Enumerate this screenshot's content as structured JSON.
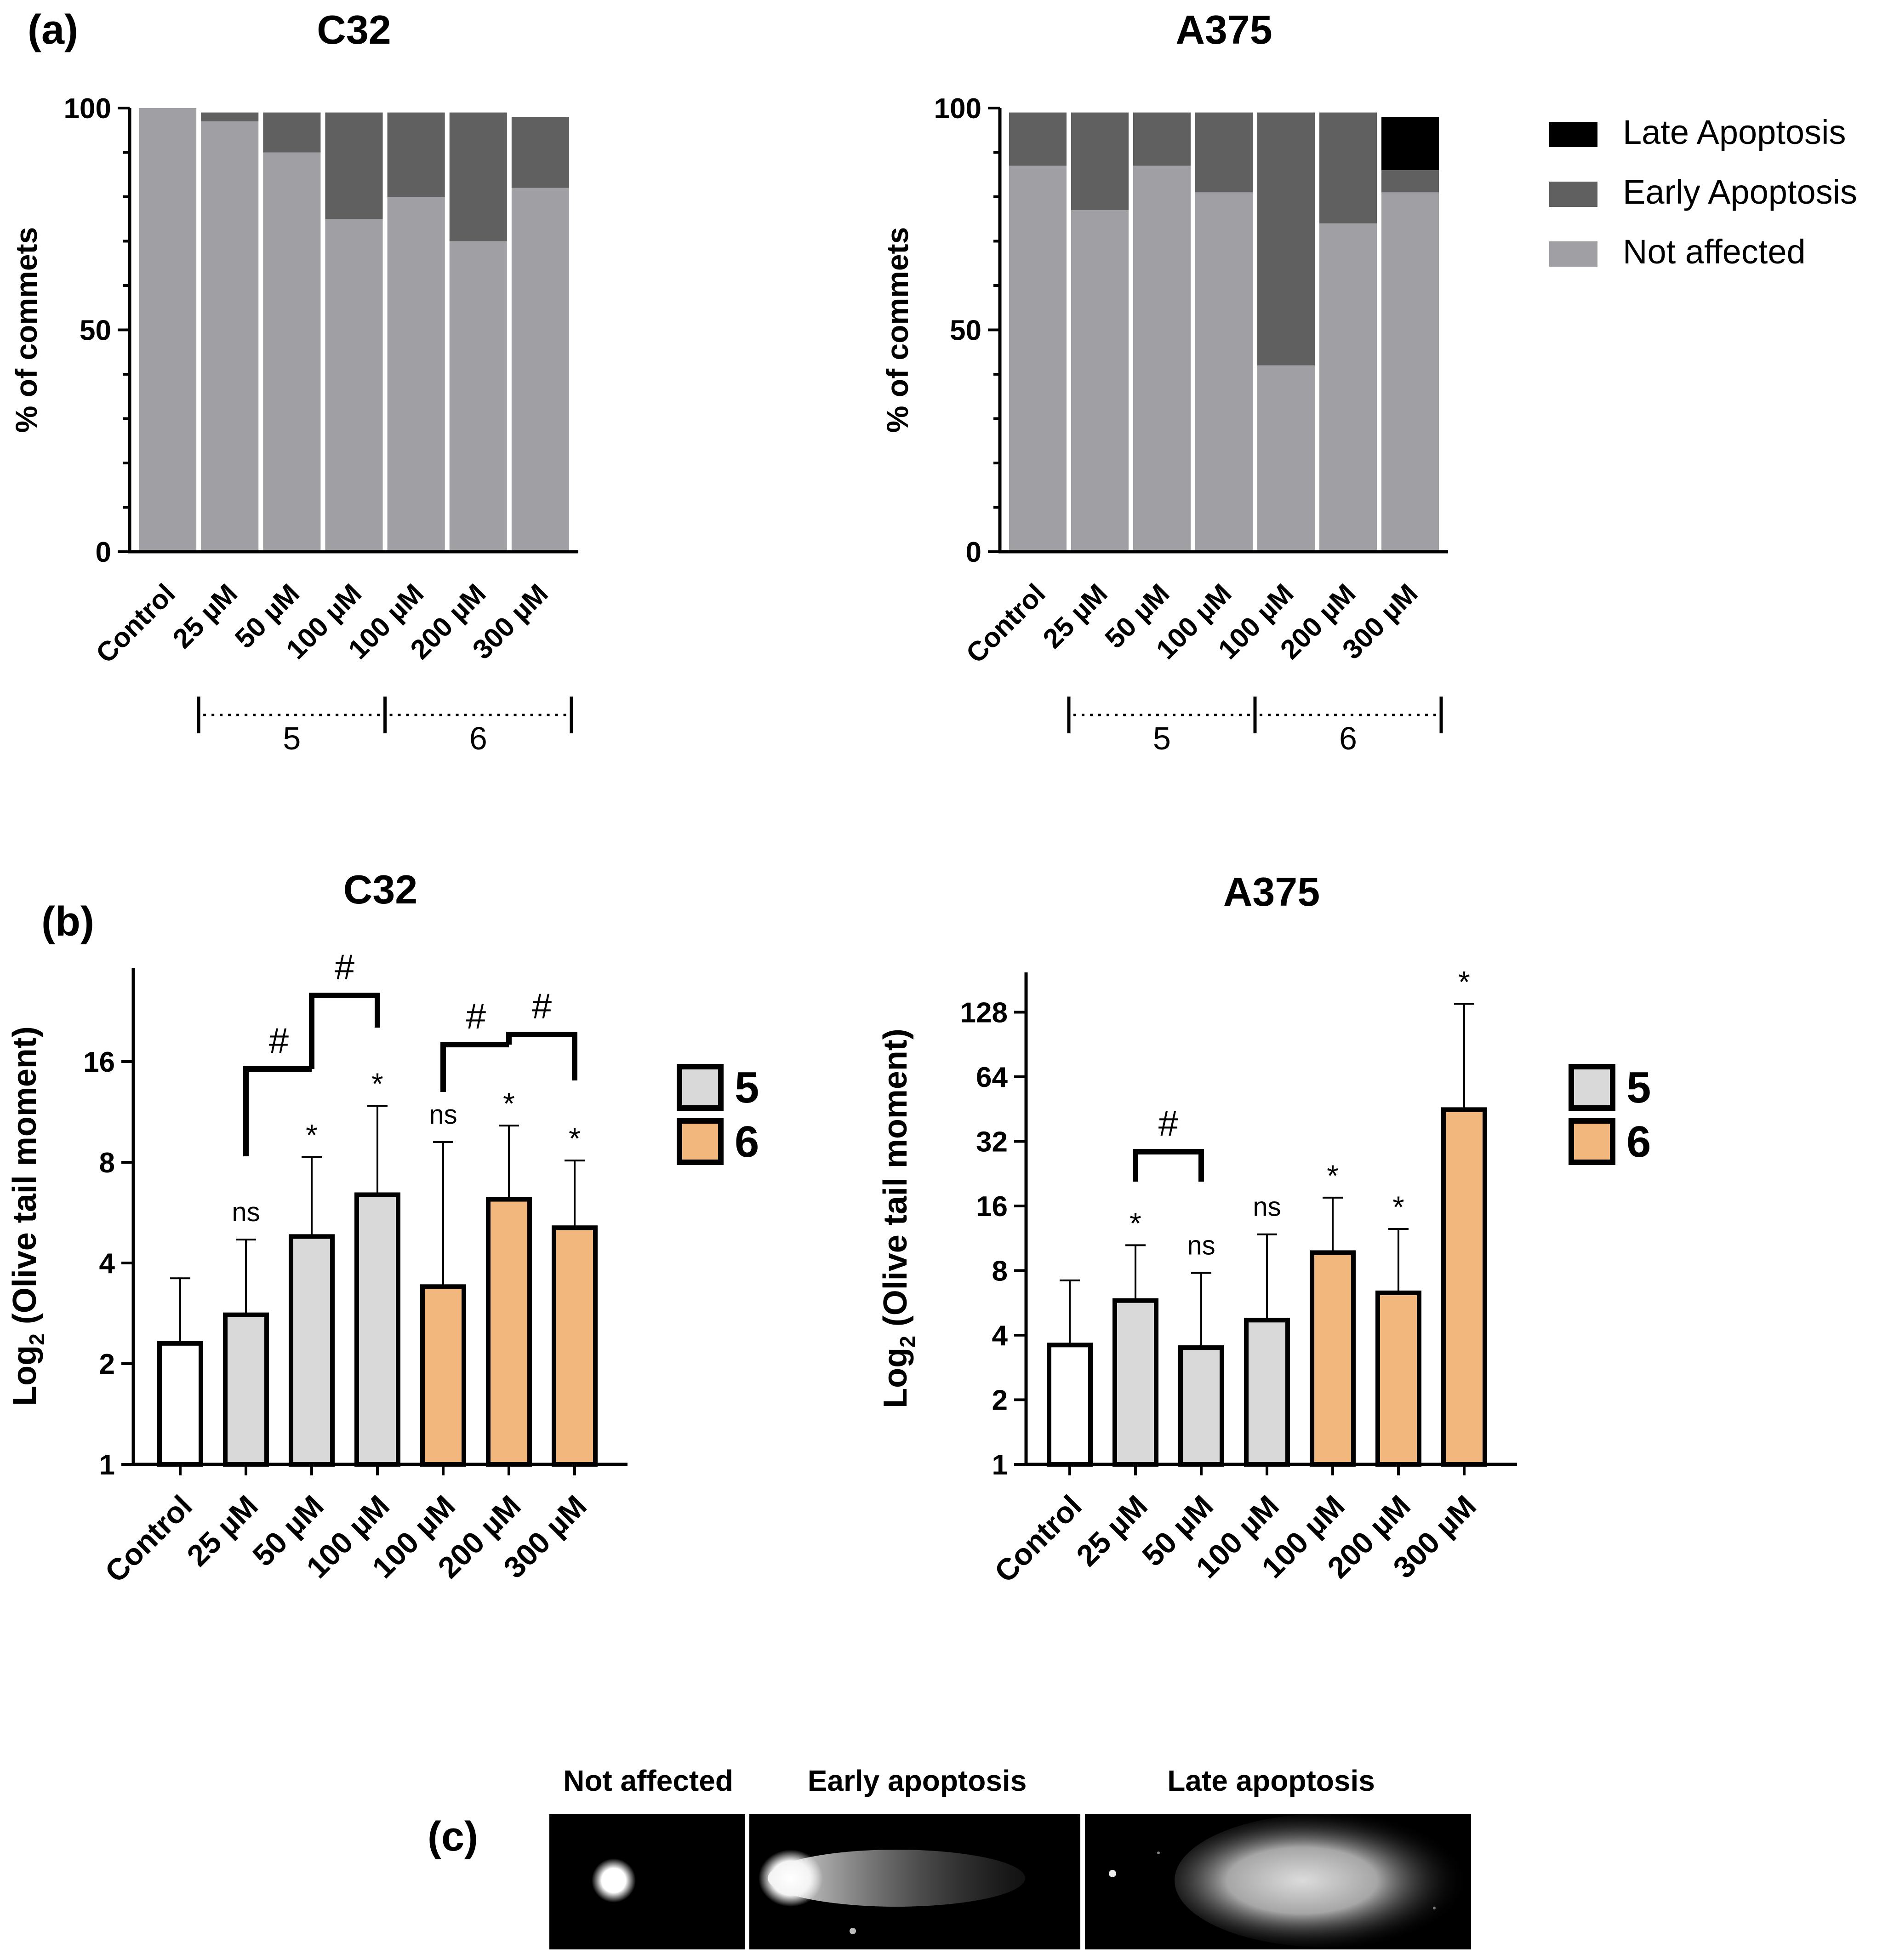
{
  "panels": {
    "a": "(a)",
    "b": "(b)",
    "c": "(c)"
  },
  "group_labels": {
    "compound_5": "5",
    "compound_6": "6"
  },
  "colors": {
    "late": "#000000",
    "early": "#606060",
    "not_affected": "#a0a0a4",
    "control_fill": "#ffffff",
    "c5_fill": "#d9d9d9",
    "c6_fill": "#f2b77d",
    "axis": "#000000"
  },
  "chart_data": [
    {
      "id": "a_c32",
      "type": "bar",
      "stacked": true,
      "title": "C32",
      "xlabel": "",
      "ylabel": "% of commets",
      "ylim": [
        0,
        100
      ],
      "yticks": [
        "0",
        "50",
        "100"
      ],
      "categories": [
        "Control",
        "25 µM",
        "50 µM",
        "100 µM",
        "100 µM",
        "200 µM",
        "300 µM"
      ],
      "series": [
        {
          "name": "Not affected",
          "values": [
            100,
            97,
            90,
            75,
            80,
            70,
            82
          ]
        },
        {
          "name": "Early Apoptosis",
          "values": [
            0,
            2,
            9,
            24,
            19,
            29,
            16
          ]
        },
        {
          "name": "Late Apoptosis",
          "values": [
            0,
            0,
            0,
            0,
            0,
            0,
            0
          ]
        }
      ]
    },
    {
      "id": "a_a375",
      "type": "bar",
      "stacked": true,
      "title": "A375",
      "xlabel": "",
      "ylabel": "% of commets",
      "ylim": [
        0,
        100
      ],
      "yticks": [
        "0",
        "50",
        "100"
      ],
      "categories": [
        "Control",
        "25 µM",
        "50 µM",
        "100 µM",
        "100 µM",
        "200 µM",
        "300 µM"
      ],
      "legend": [
        "Late Apoptosis",
        "Early Apoptosis",
        "Not affected"
      ],
      "series": [
        {
          "name": "Not affected",
          "values": [
            87,
            77,
            87,
            81,
            42,
            74,
            81
          ]
        },
        {
          "name": "Early Apoptosis",
          "values": [
            12,
            22,
            12,
            18,
            57,
            25,
            5
          ]
        },
        {
          "name": "Late Apoptosis",
          "values": [
            0,
            0,
            0,
            0,
            0,
            0,
            12
          ]
        }
      ]
    },
    {
      "id": "b_c32",
      "type": "bar",
      "scale": "log2",
      "title": "C32",
      "xlabel": "",
      "ylabel_base": "Log",
      "ylabel_sub": "2",
      "ylabel_rest": " (Olive tail moment)",
      "ylim": [
        1,
        32
      ],
      "yticks": [
        "1",
        "2",
        "4",
        "8",
        "16"
      ],
      "categories": [
        "Control",
        "25 µM",
        "50 µM",
        "100 µM",
        "100 µM",
        "200 µM",
        "300 µM"
      ],
      "values": [
        2.3,
        2.8,
        4.8,
        6.4,
        3.4,
        6.2,
        5.1
      ],
      "errors_upper": [
        3.6,
        4.7,
        8.3,
        11.8,
        9.2,
        10.3,
        8.1
      ],
      "groups": [
        "control",
        "5",
        "5",
        "5",
        "6",
        "6",
        "6"
      ],
      "annotations": [
        "",
        "ns",
        "*",
        "*",
        "ns",
        "*",
        "*"
      ],
      "brackets": [
        {
          "from": 1,
          "to": 2,
          "label": "#"
        },
        {
          "from": 2,
          "to": 3,
          "label": "#"
        },
        {
          "from": 4,
          "to": 5,
          "label": "#"
        },
        {
          "from": 5,
          "to": 6,
          "label": "#"
        }
      ]
    },
    {
      "id": "b_a375",
      "type": "bar",
      "scale": "log2",
      "title": "A375",
      "xlabel": "",
      "ylabel_base": "Log",
      "ylabel_sub": "2",
      "ylabel_rest": " (Olive tail moment)",
      "ylim": [
        1,
        180
      ],
      "yticks": [
        "1",
        "2",
        "4",
        "8",
        "16",
        "32",
        "64",
        "128"
      ],
      "categories": [
        "Control",
        "25 µM",
        "50 µM",
        "100 µM",
        "100 µM",
        "200 µM",
        "300 µM"
      ],
      "values": [
        3.6,
        5.8,
        3.5,
        4.7,
        9.7,
        6.3,
        45
      ],
      "errors_upper": [
        7.2,
        10.5,
        7.8,
        11.8,
        17.5,
        12.5,
        140
      ],
      "groups": [
        "control",
        "5",
        "5",
        "5",
        "6",
        "6",
        "6"
      ],
      "annotations": [
        "",
        "*",
        "ns",
        "ns",
        "*",
        "*",
        "*"
      ],
      "brackets": [
        {
          "from": 1,
          "to": 2,
          "label": "#"
        }
      ]
    }
  ],
  "comet_images": [
    {
      "label": "Not affected"
    },
    {
      "label": "Early apoptosis"
    },
    {
      "label": "Late apoptosis"
    }
  ]
}
